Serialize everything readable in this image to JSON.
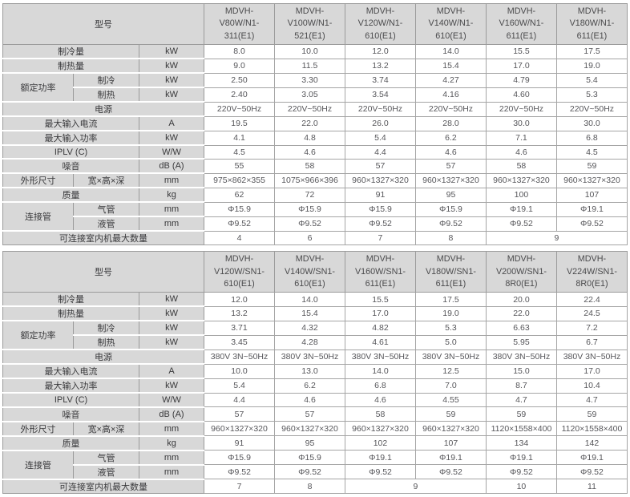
{
  "colors": {
    "cell_gray": "#d8d8d8",
    "border_gray": "#9b9b9b",
    "data_border": "#a5a5a5",
    "label_text": "#39393b",
    "value_text": "#56565a"
  },
  "tables": [
    {
      "model_header_label": "型号",
      "models": [
        "MDVH-\nV80W/N1-\n311(E1)",
        "MDVH-\nV100W/N1-\n521(E1)",
        "MDVH-\nV120W/N1-\n610(E1)",
        "MDVH-\nV140W/N1-\n610(E1)",
        "MDVH-\nV160W/N1-\n611(E1)",
        "MDVH-\nV180W/N1-\n611(E1)"
      ],
      "rows": [
        {
          "kind": "plain",
          "label": "制冷量",
          "unit": "kW",
          "values": [
            "8.0",
            "10.0",
            "12.0",
            "14.0",
            "15.5",
            "17.5"
          ]
        },
        {
          "kind": "plain",
          "label": "制热量",
          "unit": "kW",
          "values": [
            "9.0",
            "11.5",
            "13.2",
            "15.4",
            "17.0",
            "19.0"
          ]
        },
        {
          "kind": "group",
          "group": "额定功率",
          "rowspan": 2,
          "label": "制冷",
          "unit": "kW",
          "values": [
            "2.50",
            "3.30",
            "3.74",
            "4.27",
            "4.79",
            "5.4"
          ]
        },
        {
          "kind": "sub",
          "label": "制热",
          "unit": "kW",
          "values": [
            "2.40",
            "3.05",
            "3.54",
            "4.16",
            "4.60",
            "5.3"
          ]
        },
        {
          "kind": "full",
          "label": "电源",
          "values": [
            "220V~50Hz",
            "220V~50Hz",
            "220V~50Hz",
            "220V~50Hz",
            "220V~50Hz",
            "220V~50Hz"
          ]
        },
        {
          "kind": "plain",
          "label": "最大输入电流",
          "unit": "A",
          "values": [
            "19.5",
            "22.0",
            "26.0",
            "28.0",
            "30.0",
            "30.0"
          ]
        },
        {
          "kind": "plain",
          "label": "最大输入功率",
          "unit": "kW",
          "values": [
            "4.1",
            "4.8",
            "5.4",
            "6.2",
            "7.1",
            "6.8"
          ]
        },
        {
          "kind": "plain",
          "label": "IPLV (C)",
          "unit": "W/W",
          "values": [
            "4.5",
            "4.6",
            "4.4",
            "4.6",
            "4.6",
            "4.5"
          ]
        },
        {
          "kind": "plain",
          "label": "噪音",
          "unit": "dB (A)",
          "values": [
            "55",
            "58",
            "57",
            "57",
            "58",
            "59"
          ]
        },
        {
          "kind": "pair",
          "group": "外形尺寸",
          "label": "宽×高×深",
          "unit": "mm",
          "values": [
            "975×862×355",
            "1075×966×396",
            "960×1327×320",
            "960×1327×320",
            "960×1327×320",
            "960×1327×320"
          ]
        },
        {
          "kind": "plain",
          "label": "质量",
          "unit": "kg",
          "values": [
            "62",
            "72",
            "91",
            "95",
            "100",
            "107"
          ]
        },
        {
          "kind": "group",
          "group": "连接管",
          "rowspan": 2,
          "label": "气管",
          "unit": "mm",
          "values": [
            "Φ15.9",
            "Φ15.9",
            "Φ15.9",
            "Φ15.9",
            "Φ19.1",
            "Φ19.1"
          ]
        },
        {
          "kind": "sub",
          "label": "液管",
          "unit": "mm",
          "values": [
            "Φ9.52",
            "Φ9.52",
            "Φ9.52",
            "Φ9.52",
            "Φ9.52",
            "Φ9.52"
          ]
        },
        {
          "kind": "span",
          "label": "可连接室内机最大数量",
          "cells": [
            {
              "v": "4"
            },
            {
              "v": "6"
            },
            {
              "v": "7"
            },
            {
              "v": "8"
            },
            {
              "v": "9",
              "span": 2
            }
          ]
        }
      ]
    },
    {
      "model_header_label": "型号",
      "models": [
        "MDVH-\nV120W/SN1-\n610(E1)",
        "MDVH-\nV140W/SN1-\n610(E1)",
        "MDVH-\nV160W/SN1-\n611(E1)",
        "MDVH-\nV180W/SN1-\n611(E1)",
        "MDVH-\nV200W/SN1-\n8R0(E1)",
        "MDVH-\nV224W/SN1-\n8R0(E1)"
      ],
      "rows": [
        {
          "kind": "plain",
          "label": "制冷量",
          "unit": "kW",
          "values": [
            "12.0",
            "14.0",
            "15.5",
            "17.5",
            "20.0",
            "22.4"
          ]
        },
        {
          "kind": "plain",
          "label": "制热量",
          "unit": "kW",
          "values": [
            "13.2",
            "15.4",
            "17.0",
            "19.0",
            "22.0",
            "24.5"
          ]
        },
        {
          "kind": "group",
          "group": "额定功率",
          "rowspan": 2,
          "label": "制冷",
          "unit": "kW",
          "values": [
            "3.71",
            "4.32",
            "4.82",
            "5.3",
            "6.63",
            "7.2"
          ]
        },
        {
          "kind": "sub",
          "label": "制热",
          "unit": "kW",
          "values": [
            "3.45",
            "4.28",
            "4.61",
            "5.0",
            "5.95",
            "6.7"
          ]
        },
        {
          "kind": "full",
          "label": "电源",
          "values": [
            "380V 3N~50Hz",
            "380V 3N~50Hz",
            "380V 3N~50Hz",
            "380V 3N~50Hz",
            "380V 3N~50Hz",
            "380V 3N~50Hz"
          ]
        },
        {
          "kind": "plain",
          "label": "最大输入电流",
          "unit": "A",
          "values": [
            "10.0",
            "13.0",
            "14.0",
            "12.5",
            "15.0",
            "17.0"
          ]
        },
        {
          "kind": "plain",
          "label": "最大输入功率",
          "unit": "kW",
          "values": [
            "5.4",
            "6.2",
            "6.8",
            "7.0",
            "8.7",
            "10.4"
          ]
        },
        {
          "kind": "plain",
          "label": "IPLV (C)",
          "unit": "W/W",
          "values": [
            "4.4",
            "4.6",
            "4.6",
            "4.55",
            "4.7",
            "4.7"
          ]
        },
        {
          "kind": "plain",
          "label": "噪音",
          "unit": "dB (A)",
          "values": [
            "57",
            "57",
            "58",
            "59",
            "59",
            "59"
          ]
        },
        {
          "kind": "pair",
          "group": "外形尺寸",
          "label": "宽×高×深",
          "unit": "mm",
          "values": [
            "960×1327×320",
            "960×1327×320",
            "960×1327×320",
            "960×1327×320",
            "1120×1558×400",
            "1120×1558×400"
          ]
        },
        {
          "kind": "plain",
          "label": "质量",
          "unit": "kg",
          "values": [
            "91",
            "95",
            "102",
            "107",
            "134",
            "142"
          ]
        },
        {
          "kind": "group",
          "group": "连接管",
          "rowspan": 2,
          "label": "气管",
          "unit": "mm",
          "values": [
            "Φ15.9",
            "Φ15.9",
            "Φ19.1",
            "Φ19.1",
            "Φ19.1",
            "Φ19.1"
          ]
        },
        {
          "kind": "sub",
          "label": "液管",
          "unit": "mm",
          "values": [
            "Φ9.52",
            "Φ9.52",
            "Φ9.52",
            "Φ9.52",
            "Φ9.52",
            "Φ9.52"
          ]
        },
        {
          "kind": "span",
          "label": "可连接室内机最大数量",
          "cells": [
            {
              "v": "7"
            },
            {
              "v": "8"
            },
            {
              "v": "9",
              "span": 2
            },
            {
              "v": "10"
            },
            {
              "v": "11"
            }
          ]
        }
      ]
    }
  ]
}
